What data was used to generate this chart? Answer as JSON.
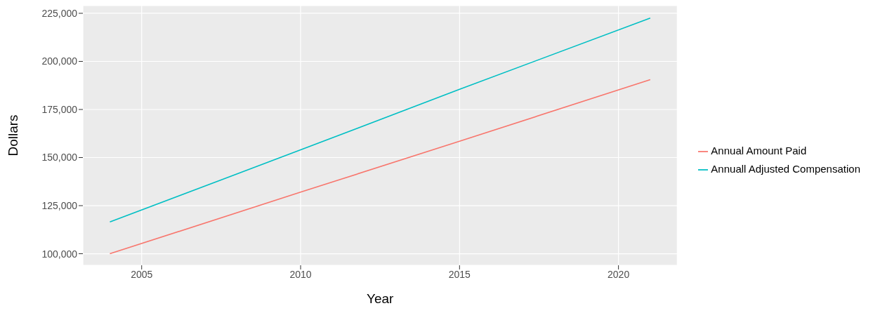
{
  "chart_data": {
    "type": "line",
    "xlabel": "Year",
    "ylabel": "Dollars",
    "xlim": [
      2003.15,
      2021.85
    ],
    "xticks": [
      2005,
      2010,
      2015,
      2020
    ],
    "ylim": [
      94000,
      229000
    ],
    "yticks": [
      {
        "value": 100000,
        "label": "100,000"
      },
      {
        "value": 125000,
        "label": "125,000"
      },
      {
        "value": 150000,
        "label": "150,000"
      },
      {
        "value": 175000,
        "label": "175,000"
      },
      {
        "value": 200000,
        "label": "200,000"
      },
      {
        "value": 225000,
        "label": "225,000"
      }
    ],
    "grid": true,
    "legend": "right",
    "marker": "none",
    "line_style": "solid",
    "series": [
      {
        "name": "Annual Amount Paid",
        "color": "#f8766d",
        "x": [
          2004,
          2010,
          2015,
          2021
        ],
        "values": [
          100000,
          132000,
          158500,
          190500
        ]
      },
      {
        "name": "Annuall Adjusted Compensation",
        "color": "#00bfc4",
        "x": [
          2004,
          2010,
          2015,
          2021
        ],
        "values": [
          116500,
          154000,
          185500,
          222500
        ]
      }
    ]
  }
}
